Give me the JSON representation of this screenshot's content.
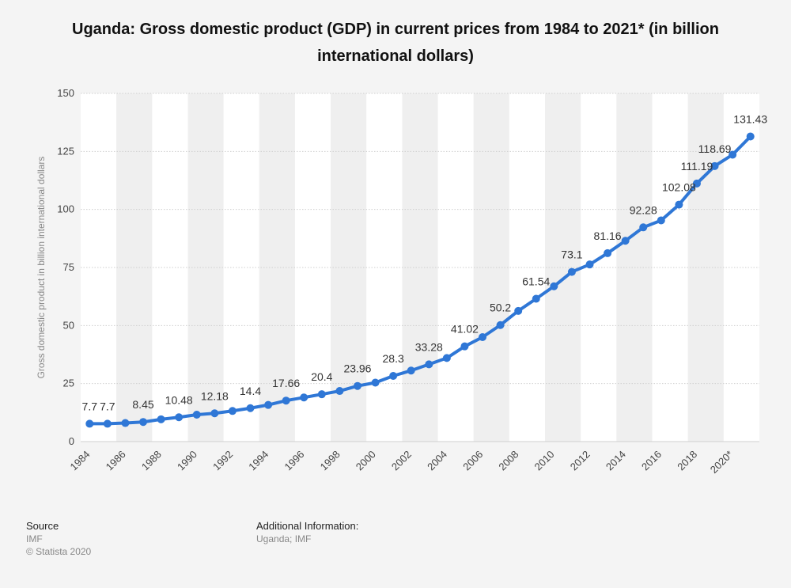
{
  "title": "Uganda: Gross domestic product (GDP) in current prices from 1984 to 2021* (in billion international dollars)",
  "colors": {
    "line": "#2f77d6",
    "background": "#f4f4f4",
    "band": "#ffffff",
    "grid": "#cfcfcf"
  },
  "chart_data": {
    "type": "line",
    "title": "Uganda: Gross domestic product (GDP) in current prices from 1984 to 2021* (in billion international dollars)",
    "ylabel": "Gross domestic product in billion international dollars",
    "xlabel": "",
    "ylim": [
      0,
      150
    ],
    "yticks": [
      0,
      25,
      50,
      75,
      100,
      125,
      150
    ],
    "grid": true,
    "x": [
      "1984",
      "1985",
      "1986",
      "1987",
      "1988",
      "1989",
      "1990",
      "1991",
      "1992",
      "1993",
      "1994",
      "1995",
      "1996",
      "1997",
      "1998",
      "1999",
      "2000",
      "2001",
      "2002",
      "2003",
      "2004",
      "2005",
      "2006",
      "2007",
      "2008",
      "2009",
      "2010",
      "2011",
      "2012",
      "2013",
      "2014",
      "2015",
      "2016",
      "2017",
      "2018",
      "2019",
      "2020*",
      "2021*"
    ],
    "x_tick_labels": [
      "1984",
      "1986",
      "1988",
      "1990",
      "1992",
      "1994",
      "1996",
      "1998",
      "2000",
      "2002",
      "2004",
      "2006",
      "2008",
      "2010",
      "2012",
      "2014",
      "2016",
      "2018",
      "2020*"
    ],
    "series": [
      {
        "values": [
          7.7,
          7.7,
          8.0,
          8.45,
          9.6,
          10.48,
          11.6,
          12.18,
          13.2,
          14.4,
          15.8,
          17.66,
          19.0,
          20.4,
          21.8,
          23.96,
          25.4,
          28.3,
          30.6,
          33.28,
          36.0,
          41.02,
          45.0,
          50.2,
          56.3,
          61.54,
          66.9,
          73.1,
          76.3,
          81.16,
          86.5,
          92.28,
          95.3,
          102.08,
          111.19,
          118.69,
          123.6,
          131.43
        ]
      }
    ],
    "data_labels": [
      {
        "index": 0,
        "text": "7.7"
      },
      {
        "index": 1,
        "text": "7.7"
      },
      {
        "index": 3,
        "text": "8.45"
      },
      {
        "index": 5,
        "text": "10.48"
      },
      {
        "index": 7,
        "text": "12.18"
      },
      {
        "index": 9,
        "text": "14.4"
      },
      {
        "index": 11,
        "text": "17.66"
      },
      {
        "index": 13,
        "text": "20.4"
      },
      {
        "index": 15,
        "text": "23.96"
      },
      {
        "index": 17,
        "text": "28.3"
      },
      {
        "index": 19,
        "text": "33.28"
      },
      {
        "index": 21,
        "text": "41.02"
      },
      {
        "index": 23,
        "text": "50.2"
      },
      {
        "index": 25,
        "text": "61.54"
      },
      {
        "index": 27,
        "text": "73.1"
      },
      {
        "index": 29,
        "text": "81.16"
      },
      {
        "index": 31,
        "text": "92.28"
      },
      {
        "index": 33,
        "text": "102.08"
      },
      {
        "index": 34,
        "text": "111.19"
      },
      {
        "index": 35,
        "text": "118.69"
      },
      {
        "index": 37,
        "text": "131.43"
      }
    ]
  },
  "footer": {
    "source_heading": "Source",
    "source_text": "IMF",
    "copyright": "© Statista 2020",
    "info_heading": "Additional Information:",
    "info_text": "Uganda; IMF"
  }
}
